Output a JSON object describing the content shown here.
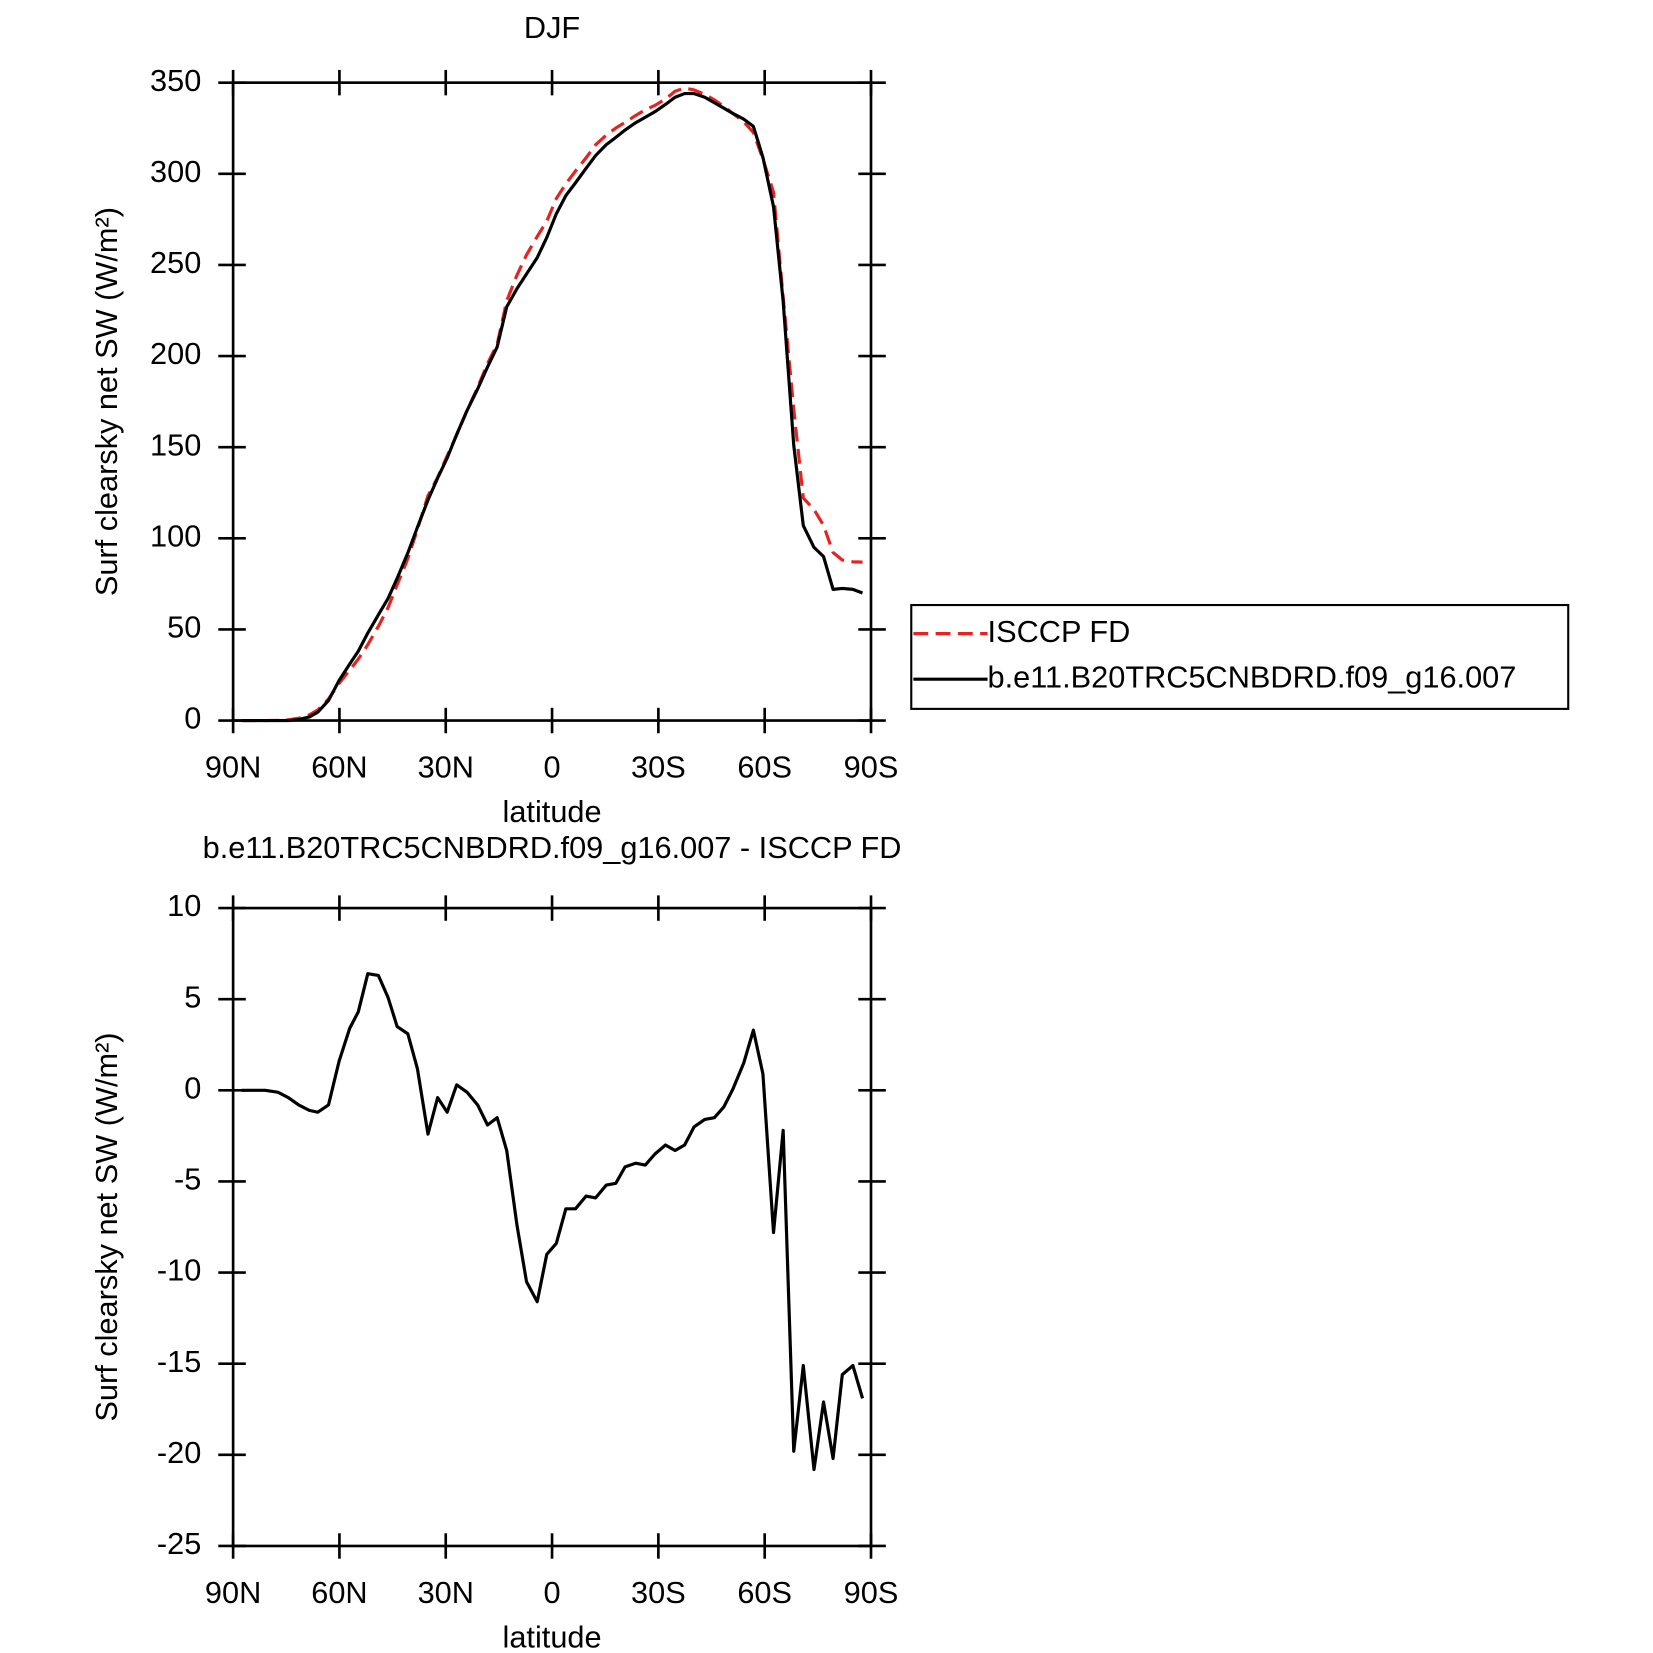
{
  "chart_data": [
    {
      "type": "line",
      "title": "DJF",
      "xlabel": "latitude",
      "ylabel": "Surf clearsky net SW (W/m²)",
      "x": [
        87.6,
        81,
        77.4,
        74.4,
        71.5,
        68.5,
        66.1,
        63.1,
        60.1,
        57.1,
        54.7,
        52,
        49,
        46.3,
        43.7,
        40.7,
        38,
        35,
        32.3,
        29.6,
        26.9,
        24,
        21,
        18.2,
        15.5,
        12.8,
        9.9,
        7.2,
        4.2,
        1.5,
        -1.2,
        -3.9,
        -6.6,
        -9.6,
        -12.3,
        -15.3,
        -18,
        -20.6,
        -23.6,
        -26.3,
        -29,
        -32,
        -34.7,
        -37.4,
        -40.1,
        -43.1,
        -45.8,
        -48.5,
        -51.1,
        -54.1,
        -56.8,
        -59.5,
        -62.5,
        -65.2,
        -68.2,
        -70.9,
        -73.9,
        -76.6,
        -79.3,
        -81.9,
        -84.9,
        -87.6
      ],
      "series": [
        {
          "name": "ISCCP FD",
          "color": "#e8231f",
          "linestyle": "dashed",
          "values": [
            0,
            0,
            0.1,
            0.4,
            1.3,
            3.1,
            5.8,
            11.8,
            20.4,
            27.6,
            33.7,
            41.6,
            51.7,
            61.9,
            74.5,
            88.9,
            104.8,
            123.4,
            133.4,
            145.2,
            156.7,
            170.1,
            182.8,
            195.9,
            206.5,
            230.3,
            244.4,
            255.5,
            265.6,
            274,
            286.4,
            294.5,
            301.5,
            308.8,
            315.9,
            321.2,
            325.1,
            328.2,
            332,
            335.1,
            337.5,
            341,
            345.3,
            347,
            346,
            343.6,
            340.5,
            336.9,
            332.9,
            328.5,
            322.7,
            308.1,
            289.8,
            232.2,
            170.8,
            122.1,
            115.8,
            107.1,
            92.2,
            88.1,
            87.1,
            86.9
          ]
        },
        {
          "name": "b.e11.B20TRC5CNBDRD.f09_g16.007",
          "color": "#000000",
          "linestyle": "solid",
          "values": [
            0,
            0,
            0,
            0,
            0.5,
            2,
            4.6,
            11,
            22,
            31,
            38,
            48,
            58,
            67,
            78,
            92,
            106,
            121,
            133,
            144,
            157,
            170,
            182,
            194,
            205,
            227,
            237,
            245,
            254,
            265,
            278,
            288,
            295,
            303,
            310,
            316,
            320,
            324,
            328,
            331,
            334,
            338,
            342,
            344,
            344,
            342,
            339,
            336,
            333,
            330,
            326,
            309,
            282,
            230,
            151,
            107,
            95,
            90,
            72,
            72.5,
            72,
            70
          ]
        }
      ],
      "xlim": [
        90,
        -90
      ],
      "xticks": [
        {
          "value": 90,
          "label": "90N"
        },
        {
          "value": 60,
          "label": "60N"
        },
        {
          "value": 30,
          "label": "30N"
        },
        0,
        {
          "value": -30,
          "label": "30S"
        },
        {
          "value": -60,
          "label": "60S"
        },
        {
          "value": -90,
          "label": "90S"
        }
      ],
      "ylim": [
        0,
        350
      ],
      "yticks": [
        0,
        50,
        100,
        150,
        200,
        250,
        300,
        350
      ],
      "legend": "outside right"
    },
    {
      "type": "line",
      "title": "b.e11.B20TRC5CNBDRD.f09_g16.007 - ISCCP FD",
      "xlabel": "latitude",
      "ylabel": "Surf clearsky net SW (W/m²)",
      "x": [
        87.6,
        81,
        77.4,
        74.4,
        71.5,
        68.5,
        66.1,
        63.1,
        60.1,
        57.1,
        54.7,
        52,
        49,
        46.3,
        43.7,
        40.7,
        38,
        35,
        32.3,
        29.6,
        26.9,
        24,
        21,
        18.2,
        15.5,
        12.8,
        9.9,
        7.2,
        4.2,
        1.5,
        -1.2,
        -3.9,
        -6.6,
        -9.6,
        -12.3,
        -15.3,
        -18,
        -20.6,
        -23.6,
        -26.3,
        -29,
        -32,
        -34.7,
        -37.4,
        -40.1,
        -43.1,
        -45.8,
        -48.5,
        -51.1,
        -54.1,
        -56.8,
        -59.5,
        -62.5,
        -65.2,
        -68.2,
        -70.9,
        -73.9,
        -76.6,
        -79.3,
        -81.9,
        -84.9,
        -87.6
      ],
      "values": [
        0,
        0,
        -0.1,
        -0.4,
        -0.8,
        -1.1,
        -1.2,
        -0.8,
        1.6,
        3.4,
        4.3,
        6.4,
        6.3,
        5.1,
        3.5,
        3.1,
        1.2,
        -2.4,
        -0.4,
        -1.2,
        0.3,
        -0.1,
        -0.8,
        -1.9,
        -1.5,
        -3.3,
        -7.4,
        -10.5,
        -11.6,
        -9,
        -8.4,
        -6.5,
        -6.5,
        -5.8,
        -5.9,
        -5.2,
        -5.1,
        -4.2,
        -4.0,
        -4.1,
        -3.5,
        -3.0,
        -3.3,
        -3.0,
        -2.0,
        -1.6,
        -1.5,
        -0.9,
        0.1,
        1.5,
        3.3,
        0.9,
        -7.8,
        -2.2,
        -19.8,
        -15.1,
        -20.8,
        -17.1,
        -20.2,
        -15.6,
        -15.1,
        -16.9
      ],
      "color": "#000000",
      "xlim": [
        90,
        -90
      ],
      "xticks": [
        {
          "value": 90,
          "label": "90N"
        },
        {
          "value": 60,
          "label": "60N"
        },
        {
          "value": 30,
          "label": "30N"
        },
        0,
        {
          "value": -30,
          "label": "30S"
        },
        {
          "value": -60,
          "label": "60S"
        },
        {
          "value": -90,
          "label": "90S"
        }
      ],
      "ylim": [
        -25,
        10
      ],
      "yticks": [
        -25,
        -20,
        -15,
        -10,
        -5,
        0,
        5,
        10
      ]
    }
  ]
}
